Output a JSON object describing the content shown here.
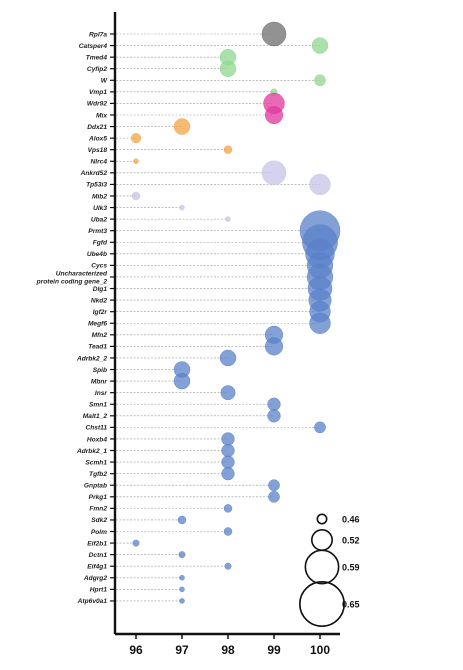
{
  "chart_data": {
    "type": "scatter",
    "title": "",
    "xlabel": "",
    "ylabel": "",
    "x_ticks": [
      96,
      97,
      98,
      99,
      100
    ],
    "xlim": [
      95.6,
      100.4
    ],
    "guide_lines": "dashed",
    "legend_placement": "bottom-right",
    "size_legend": [
      {
        "label": "0.46",
        "value": 0.46
      },
      {
        "label": "0.52",
        "value": 0.52
      },
      {
        "label": "0.59",
        "value": 0.59
      },
      {
        "label": "0.65",
        "value": 0.65
      }
    ],
    "colors": {
      "gray": "#6e6e6e",
      "green": "#8fd88f",
      "magenta": "#e0389e",
      "orange": "#f5a342",
      "lavender": "#c5c3e6",
      "blue": "#5a82c8"
    },
    "rows": [
      {
        "gene": "Rpl7a",
        "x": 99,
        "size": 0.57,
        "color": "gray"
      },
      {
        "gene": "Catsper4",
        "x": 100,
        "size": 0.52,
        "color": "green"
      },
      {
        "gene": "Tmed4",
        "x": 98,
        "size": 0.52,
        "color": "green"
      },
      {
        "gene": "Cyfip2",
        "x": 98,
        "size": 0.52,
        "color": "green"
      },
      {
        "gene": "W",
        "x": 100,
        "size": 0.49,
        "color": "green"
      },
      {
        "gene": "Vmp1",
        "x": 99,
        "size": 0.46,
        "color": "green"
      },
      {
        "gene": "Wdr92",
        "x": 99,
        "size": 0.55,
        "color": "magenta"
      },
      {
        "gene": "Mix",
        "x": 99,
        "size": 0.53,
        "color": "magenta"
      },
      {
        "gene": "Ddx21",
        "x": 97,
        "size": 0.52,
        "color": "orange"
      },
      {
        "gene": "Alox5",
        "x": 96,
        "size": 0.48,
        "color": "orange"
      },
      {
        "gene": "Vps18",
        "x": 98,
        "size": 0.47,
        "color": "orange"
      },
      {
        "gene": "Nlrc4",
        "x": 96,
        "size": 0.45,
        "color": "orange"
      },
      {
        "gene": "Ankrd52",
        "x": 99,
        "size": 0.57,
        "color": "lavender"
      },
      {
        "gene": "Tp53i3",
        "x": 100,
        "size": 0.55,
        "color": "lavender"
      },
      {
        "gene": "Mib2",
        "x": 96,
        "size": 0.47,
        "color": "lavender"
      },
      {
        "gene": "Ulk3",
        "x": 97,
        "size": 0.44,
        "color": "lavender"
      },
      {
        "gene": "Uba2",
        "x": 98,
        "size": 0.44,
        "color": "lavender"
      },
      {
        "gene": "Prmt3",
        "x": 100,
        "size": 0.67,
        "color": "blue"
      },
      {
        "gene": "Fgfd",
        "x": 100,
        "size": 0.64,
        "color": "blue"
      },
      {
        "gene": "Ube4b",
        "x": 100,
        "size": 0.6,
        "color": "blue"
      },
      {
        "gene": "Cycs",
        "x": 100,
        "size": 0.58,
        "color": "blue"
      },
      {
        "gene": "Uncharacterized protein coding gene_2",
        "label_lines": [
          "Uncharacterized",
          "protein coding gene_2"
        ],
        "x": 100,
        "size": 0.58,
        "color": "blue"
      },
      {
        "gene": "Dlg1",
        "x": 100,
        "size": 0.57,
        "color": "blue"
      },
      {
        "gene": "Nkd2",
        "x": 100,
        "size": 0.56,
        "color": "blue"
      },
      {
        "gene": "Igf2r",
        "x": 100,
        "size": 0.55,
        "color": "blue"
      },
      {
        "gene": "Megf6",
        "x": 100,
        "size": 0.55,
        "color": "blue"
      },
      {
        "gene": "Mfn2",
        "x": 99,
        "size": 0.53,
        "color": "blue"
      },
      {
        "gene": "Tead1",
        "x": 99,
        "size": 0.53,
        "color": "blue"
      },
      {
        "gene": "Adrbk2_2",
        "x": 98,
        "size": 0.52,
        "color": "blue"
      },
      {
        "gene": "Spib",
        "x": 97,
        "size": 0.52,
        "color": "blue"
      },
      {
        "gene": "Mbnr",
        "x": 97,
        "size": 0.52,
        "color": "blue"
      },
      {
        "gene": "Insr",
        "x": 98,
        "size": 0.51,
        "color": "blue"
      },
      {
        "gene": "Smn1",
        "x": 99,
        "size": 0.5,
        "color": "blue"
      },
      {
        "gene": "Malt1_2",
        "x": 99,
        "size": 0.5,
        "color": "blue"
      },
      {
        "gene": "Chst11",
        "x": 100,
        "size": 0.49,
        "color": "blue"
      },
      {
        "gene": "Hoxb4",
        "x": 98,
        "size": 0.5,
        "color": "blue"
      },
      {
        "gene": "Adrbk2_1",
        "x": 98,
        "size": 0.5,
        "color": "blue"
      },
      {
        "gene": "Scmh1",
        "x": 98,
        "size": 0.5,
        "color": "blue"
      },
      {
        "gene": "Tgfb2",
        "x": 98,
        "size": 0.5,
        "color": "blue"
      },
      {
        "gene": "Gnptab",
        "x": 99,
        "size": 0.49,
        "color": "blue"
      },
      {
        "gene": "Prkg1",
        "x": 99,
        "size": 0.49,
        "color": "blue"
      },
      {
        "gene": "Fmn2",
        "x": 98,
        "size": 0.47,
        "color": "blue"
      },
      {
        "gene": "Sdk2",
        "x": 97,
        "size": 0.47,
        "color": "blue"
      },
      {
        "gene": "Polm",
        "x": 98,
        "size": 0.47,
        "color": "blue"
      },
      {
        "gene": "Eif2b1",
        "x": 96,
        "size": 0.46,
        "color": "blue"
      },
      {
        "gene": "Dctn1",
        "x": 97,
        "size": 0.46,
        "color": "blue"
      },
      {
        "gene": "Eif4g1",
        "x": 98,
        "size": 0.46,
        "color": "blue"
      },
      {
        "gene": "Adgrg2",
        "x": 97,
        "size": 0.45,
        "color": "blue"
      },
      {
        "gene": "Hprt1",
        "x": 97,
        "size": 0.45,
        "color": "blue"
      },
      {
        "gene": "Atp6v0a1",
        "x": 97,
        "size": 0.44,
        "color": "blue"
      }
    ]
  }
}
